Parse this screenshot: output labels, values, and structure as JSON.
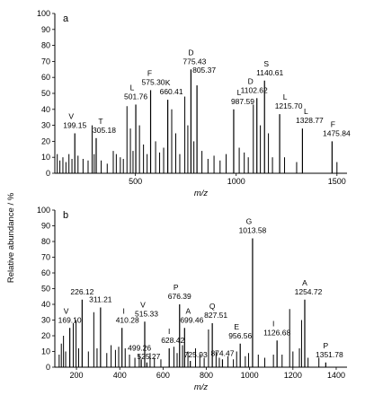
{
  "figure": {
    "ylabel": "Relative abundance / %"
  },
  "chart_data": [
    {
      "type": "bar",
      "panel": "a",
      "xlabel": "m/z",
      "xlim": [
        100,
        1550
      ],
      "ylim": [
        0,
        100
      ],
      "xticks": [
        500,
        1000,
        1500
      ],
      "yticks": [
        0,
        10,
        20,
        30,
        40,
        50,
        60,
        70,
        80,
        90,
        100
      ],
      "labeled_peaks": [
        {
          "ion": "V",
          "mz": "199.15",
          "x": 199.15,
          "y": 25
        },
        {
          "ion": "T",
          "mz": "305.18",
          "x": 305.18,
          "y": 22
        },
        {
          "ion": "L",
          "mz": "501.76",
          "x": 501.76,
          "y": 43
        },
        {
          "ion": "F",
          "mz": "575.30",
          "x": 575.3,
          "y": 52
        },
        {
          "ion": "K",
          "mz": "660.41",
          "x": 660.41,
          "y": 46
        },
        {
          "ion": "D",
          "mz": "775.43",
          "x": 775.43,
          "y": 65
        },
        {
          "ion": "",
          "mz": "805.37",
          "x": 805.37,
          "y": 55
        },
        {
          "ion": "L",
          "mz": "987.59",
          "x": 987.59,
          "y": 40
        },
        {
          "ion": "D",
          "mz": "1102.62",
          "x": 1102.62,
          "y": 47
        },
        {
          "ion": "S",
          "mz": "1140.61",
          "x": 1140.61,
          "y": 58
        },
        {
          "ion": "L",
          "mz": "1215.70",
          "x": 1215.7,
          "y": 37
        },
        {
          "ion": "L",
          "mz": "1328.77",
          "x": 1328.77,
          "y": 28
        },
        {
          "ion": "F",
          "mz": "1475.84",
          "x": 1475.84,
          "y": 20
        }
      ],
      "minor_peaks": [
        {
          "x": 112,
          "y": 12
        },
        {
          "x": 125,
          "y": 8
        },
        {
          "x": 140,
          "y": 10
        },
        {
          "x": 155,
          "y": 7
        },
        {
          "x": 170,
          "y": 12
        },
        {
          "x": 185,
          "y": 9
        },
        {
          "x": 215,
          "y": 11
        },
        {
          "x": 240,
          "y": 9
        },
        {
          "x": 265,
          "y": 8
        },
        {
          "x": 285,
          "y": 30
        },
        {
          "x": 295,
          "y": 12
        },
        {
          "x": 330,
          "y": 8
        },
        {
          "x": 360,
          "y": 6
        },
        {
          "x": 390,
          "y": 14
        },
        {
          "x": 405,
          "y": 12
        },
        {
          "x": 425,
          "y": 10
        },
        {
          "x": 440,
          "y": 9
        },
        {
          "x": 458,
          "y": 42
        },
        {
          "x": 475,
          "y": 28
        },
        {
          "x": 488,
          "y": 14
        },
        {
          "x": 520,
          "y": 30
        },
        {
          "x": 540,
          "y": 18
        },
        {
          "x": 558,
          "y": 12
        },
        {
          "x": 600,
          "y": 20
        },
        {
          "x": 620,
          "y": 13
        },
        {
          "x": 640,
          "y": 16
        },
        {
          "x": 680,
          "y": 40
        },
        {
          "x": 700,
          "y": 25
        },
        {
          "x": 720,
          "y": 12
        },
        {
          "x": 745,
          "y": 48
        },
        {
          "x": 760,
          "y": 30
        },
        {
          "x": 790,
          "y": 20
        },
        {
          "x": 830,
          "y": 14
        },
        {
          "x": 860,
          "y": 9
        },
        {
          "x": 890,
          "y": 11
        },
        {
          "x": 920,
          "y": 8
        },
        {
          "x": 950,
          "y": 12
        },
        {
          "x": 1015,
          "y": 16
        },
        {
          "x": 1040,
          "y": 13
        },
        {
          "x": 1060,
          "y": 10
        },
        {
          "x": 1085,
          "y": 43
        },
        {
          "x": 1120,
          "y": 30
        },
        {
          "x": 1160,
          "y": 25
        },
        {
          "x": 1180,
          "y": 10
        },
        {
          "x": 1240,
          "y": 10
        },
        {
          "x": 1300,
          "y": 7
        },
        {
          "x": 1500,
          "y": 7
        }
      ]
    },
    {
      "type": "bar",
      "panel": "b",
      "xlabel": "m/z",
      "xlim": [
        100,
        1450
      ],
      "ylim": [
        0,
        100
      ],
      "xticks": [
        200,
        400,
        600,
        800,
        1000,
        1200,
        1400
      ],
      "yticks": [
        0,
        10,
        20,
        30,
        40,
        50,
        60,
        70,
        80,
        90,
        100
      ],
      "labeled_peaks": [
        {
          "ion": "V",
          "mz": "169.10",
          "x": 169.1,
          "y": 25
        },
        {
          "ion": "",
          "mz": "226.12",
          "x": 226.12,
          "y": 43
        },
        {
          "ion": "",
          "mz": "311.21",
          "x": 311.21,
          "y": 38
        },
        {
          "ion": "I",
          "mz": "410.28",
          "x": 410.28,
          "y": 25
        },
        {
          "ion": "",
          "mz": "499.26",
          "x": 499.26,
          "y": 5
        },
        {
          "ion": "V",
          "mz": "515.33",
          "x": 515.33,
          "y": 29
        },
        {
          "ion": "",
          "mz": "525.27",
          "x": 525.27,
          "y": 3
        },
        {
          "ion": "I",
          "mz": "628.42",
          "x": 628.42,
          "y": 12
        },
        {
          "ion": "P",
          "mz": "676.39",
          "x": 676.39,
          "y": 40
        },
        {
          "ion": "A",
          "mz": "699.46",
          "x": 699.46,
          "y": 25
        },
        {
          "ion": "",
          "mz": "725.93",
          "x": 725.93,
          "y": 4
        },
        {
          "ion": "Q",
          "mz": "827.51",
          "x": 827.51,
          "y": 28
        },
        {
          "ion": "",
          "mz": "874.47",
          "x": 874.47,
          "y": 5
        },
        {
          "ion": "E",
          "mz": "956.56",
          "x": 956.56,
          "y": 15
        },
        {
          "ion": "G",
          "mz": "1013.58",
          "x": 1013.58,
          "y": 82
        },
        {
          "ion": "I",
          "mz": "1126.68",
          "x": 1126.68,
          "y": 17
        },
        {
          "ion": "A",
          "mz": "1254.72",
          "x": 1254.72,
          "y": 43
        },
        {
          "ion": "P",
          "mz": "1351.78",
          "x": 1351.78,
          "y": 3
        }
      ],
      "minor_peaks": [
        {
          "x": 120,
          "y": 8
        },
        {
          "x": 130,
          "y": 15
        },
        {
          "x": 140,
          "y": 20
        },
        {
          "x": 150,
          "y": 10
        },
        {
          "x": 185,
          "y": 28
        },
        {
          "x": 198,
          "y": 30
        },
        {
          "x": 210,
          "y": 12
        },
        {
          "x": 255,
          "y": 10
        },
        {
          "x": 280,
          "y": 35
        },
        {
          "x": 295,
          "y": 12
        },
        {
          "x": 340,
          "y": 9
        },
        {
          "x": 360,
          "y": 14
        },
        {
          "x": 380,
          "y": 11
        },
        {
          "x": 395,
          "y": 13
        },
        {
          "x": 425,
          "y": 12
        },
        {
          "x": 445,
          "y": 8
        },
        {
          "x": 470,
          "y": 6
        },
        {
          "x": 490,
          "y": 8
        },
        {
          "x": 540,
          "y": 9
        },
        {
          "x": 560,
          "y": 6
        },
        {
          "x": 590,
          "y": 5
        },
        {
          "x": 650,
          "y": 13
        },
        {
          "x": 665,
          "y": 9
        },
        {
          "x": 690,
          "y": 14
        },
        {
          "x": 715,
          "y": 10
        },
        {
          "x": 750,
          "y": 12
        },
        {
          "x": 770,
          "y": 8
        },
        {
          "x": 790,
          "y": 6
        },
        {
          "x": 810,
          "y": 24
        },
        {
          "x": 845,
          "y": 10
        },
        {
          "x": 860,
          "y": 6
        },
        {
          "x": 900,
          "y": 7
        },
        {
          "x": 925,
          "y": 5
        },
        {
          "x": 940,
          "y": 10
        },
        {
          "x": 980,
          "y": 7
        },
        {
          "x": 995,
          "y": 9
        },
        {
          "x": 1040,
          "y": 8
        },
        {
          "x": 1070,
          "y": 6
        },
        {
          "x": 1110,
          "y": 8
        },
        {
          "x": 1150,
          "y": 8
        },
        {
          "x": 1185,
          "y": 37
        },
        {
          "x": 1200,
          "y": 10
        },
        {
          "x": 1230,
          "y": 12
        },
        {
          "x": 1240,
          "y": 30
        },
        {
          "x": 1270,
          "y": 6
        },
        {
          "x": 1320,
          "y": 6
        }
      ]
    }
  ]
}
